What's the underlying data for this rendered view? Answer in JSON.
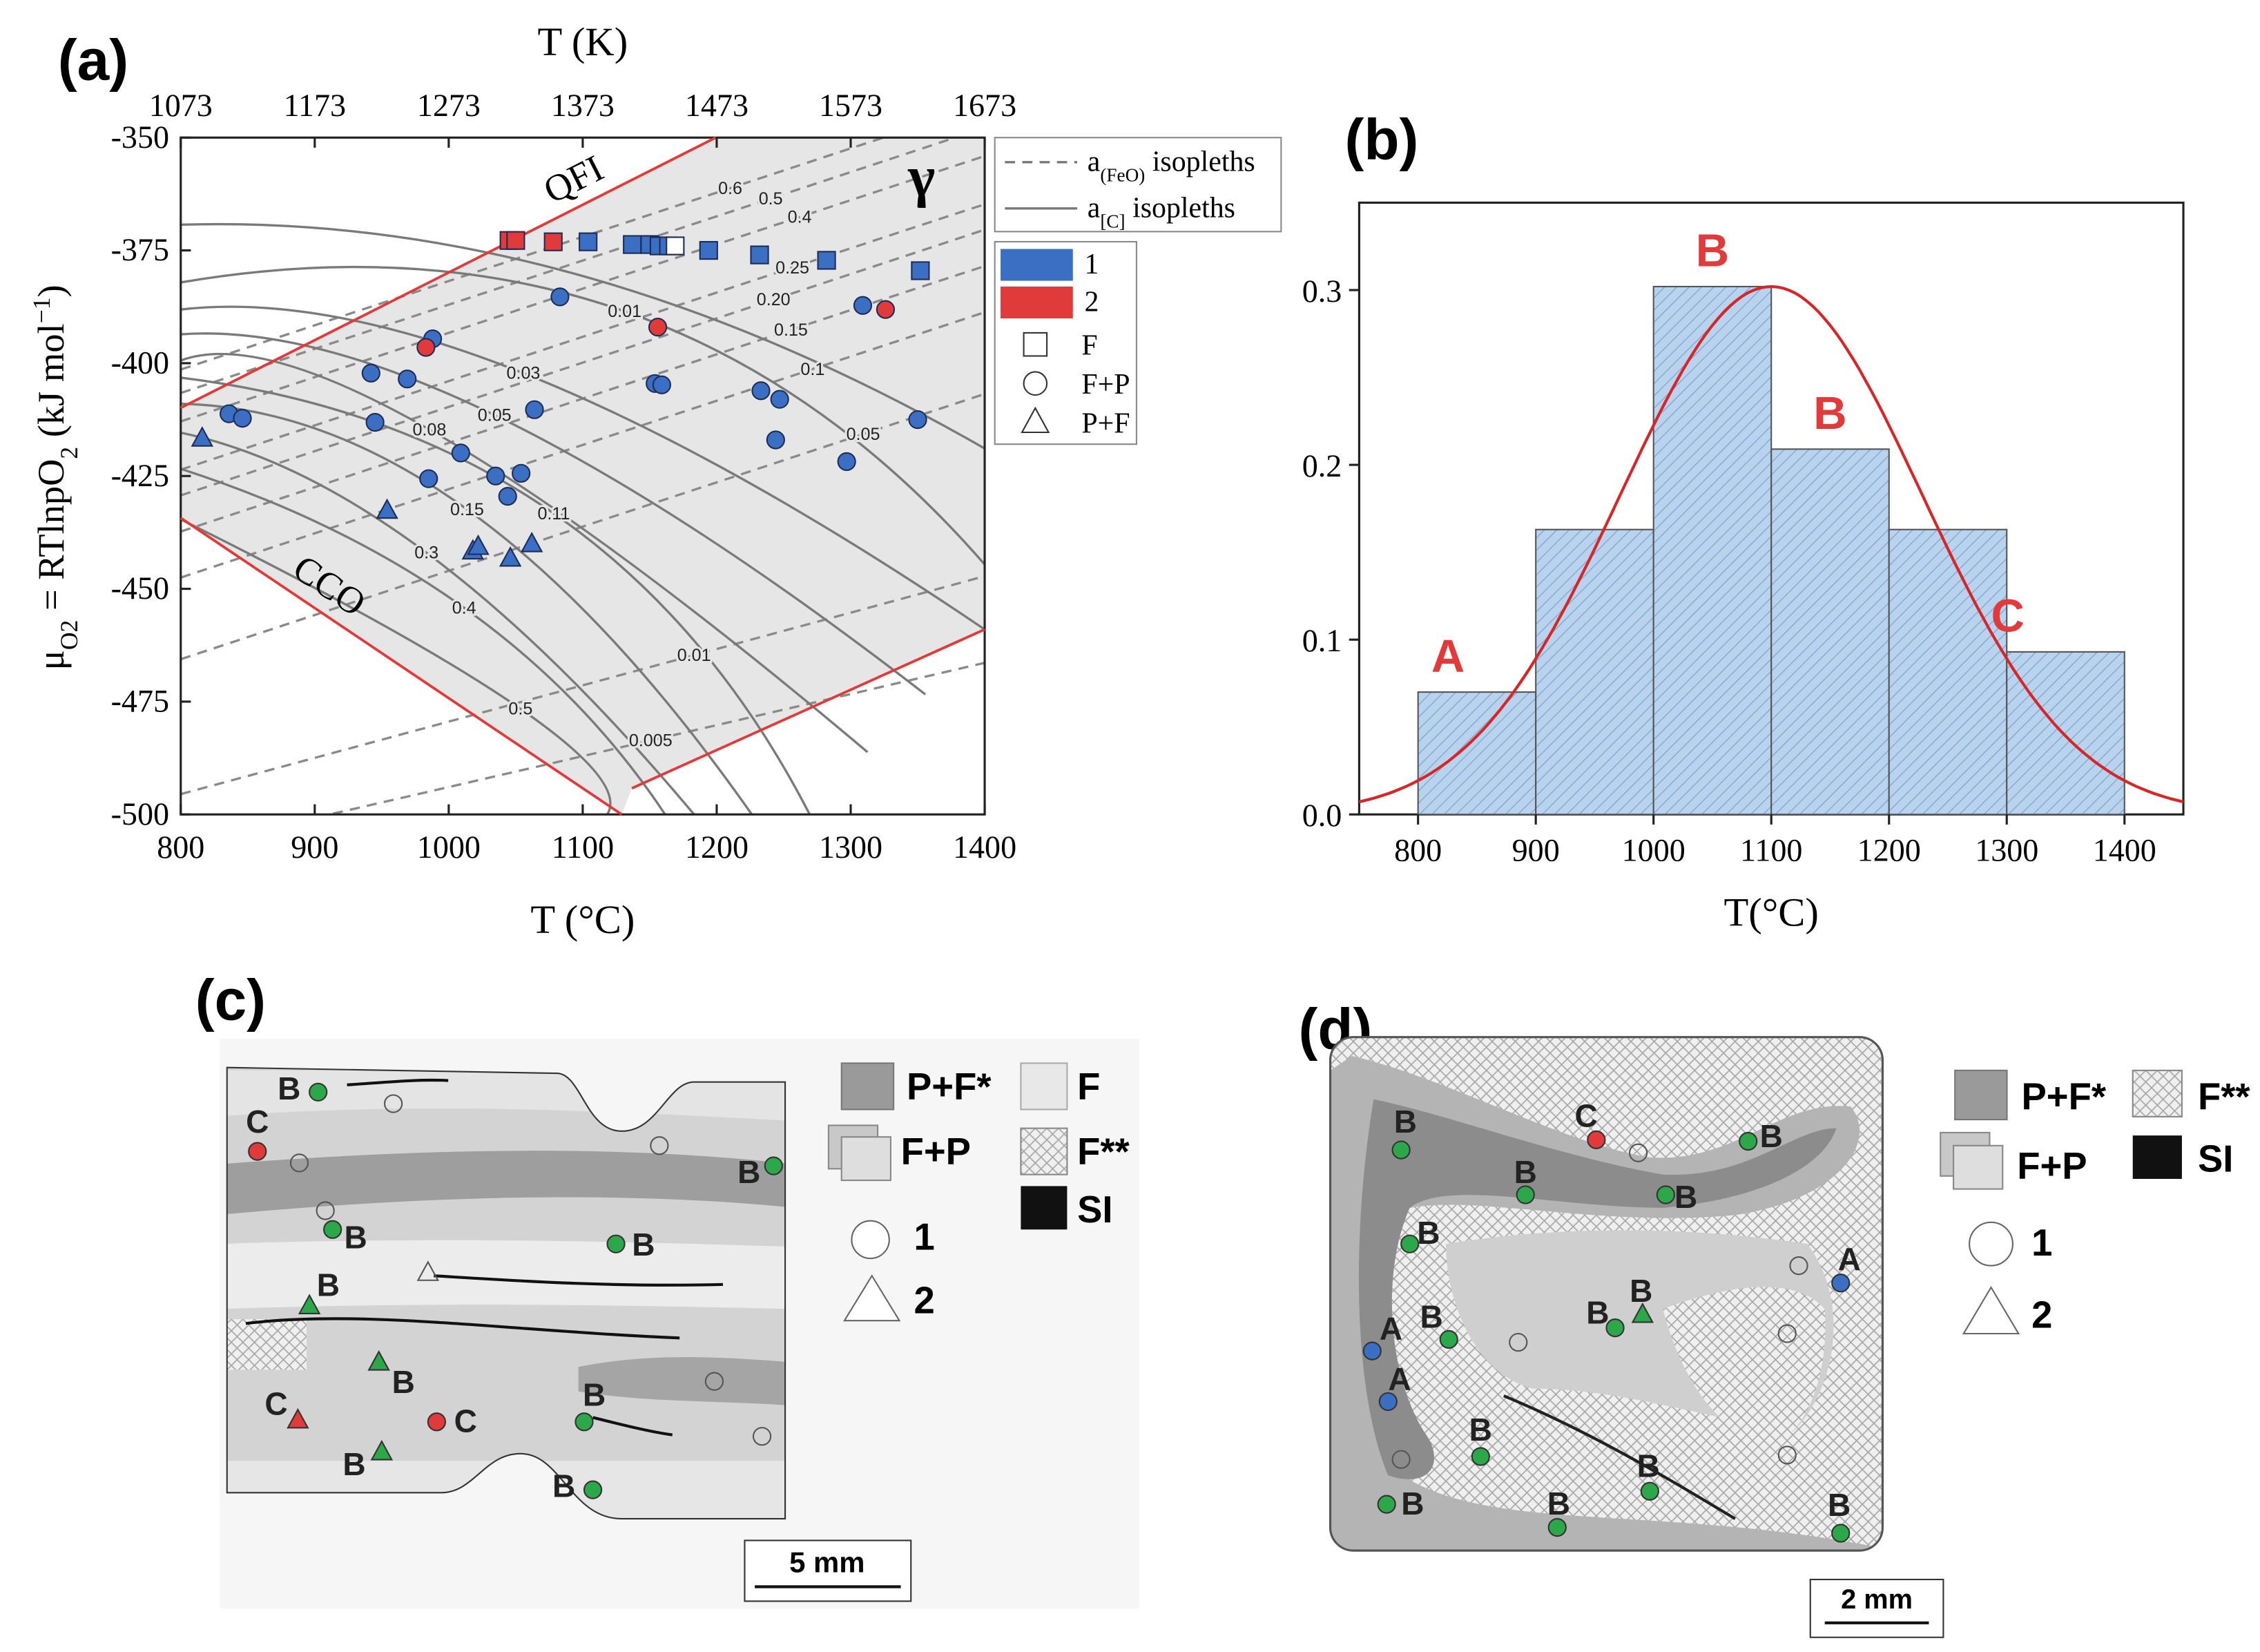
{
  "chart_data": [
    {
      "type": "scatter",
      "panel_label": "(a)",
      "x2label": "T (K)",
      "xlabel": "T (°C)",
      "ylabel": [
        "μ",
        "O2",
        " = RTlnpO",
        "2",
        " (kJ mol",
        "−1",
        ")"
      ],
      "xlim": [
        800,
        1400
      ],
      "xticks": [
        800,
        900,
        1000,
        1100,
        1200,
        1300,
        1400
      ],
      "x2lim": [
        1073,
        1673
      ],
      "x2ticks": [
        1073,
        1173,
        1273,
        1373,
        1473,
        1573,
        1673
      ],
      "ylim": [
        -500,
        -350
      ],
      "yticks": [
        -350,
        -375,
        -400,
        -425,
        -450,
        -475,
        -500
      ],
      "region_label": "γ",
      "boundaries": [
        {
          "label": "QFI",
          "color": "#e03a3a",
          "x": [
            800,
            1199.3
          ],
          "y": [
            -409.9,
            -350
          ]
        },
        {
          "label": "CCO",
          "color": "#e03a3a",
          "x": [
            800,
            1129.1
          ],
          "y": [
            -434.3,
            -500
          ]
        },
        {
          "color": "#e03a3a",
          "x": [
            1136.7,
            1400
          ],
          "y": [
            -494.2,
            -459
          ]
        }
      ],
      "isopleths": [
        {
          "style": "dashed",
          "label": "0.6",
          "x": [
            800,
            1210.1,
            1400
          ],
          "y": [
            -401.4,
            -361.2,
            -342.6
          ]
        },
        {
          "style": "dashed",
          "label": "0.5",
          "x": [
            800,
            1240.3,
            1400
          ],
          "y": [
            -406.6,
            -363.5,
            -347.8
          ]
        },
        {
          "style": "dashed",
          "label": "0.4",
          "x": [
            800,
            1261.9,
            1400
          ],
          "y": [
            -412.9,
            -367.6,
            -354.1
          ]
        },
        {
          "style": "dashed",
          "label": "0.25",
          "x": [
            800,
            1256.5,
            1400
          ],
          "y": [
            -423.6,
            -378.8,
            -364.8
          ]
        },
        {
          "style": "dashed",
          "label": "0.20",
          "x": [
            800,
            1242.4,
            1400
          ],
          "y": [
            -429.3,
            -385.9,
            -370.4
          ]
        },
        {
          "style": "dashed",
          "label": "0.15",
          "x": [
            800,
            1255.4,
            1400
          ],
          "y": [
            -437.3,
            -392.6,
            -378.5
          ]
        },
        {
          "style": "dashed",
          "label": "0.1",
          "x": [
            800,
            1271.6,
            1400
          ],
          "y": [
            -447.5,
            -401.3,
            -388.7
          ]
        },
        {
          "style": "dashed",
          "label": "0.05",
          "x": [
            800,
            1309.3,
            1400
          ],
          "y": [
            -465.6,
            -415.7,
            -406.8
          ]
        },
        {
          "style": "dashed",
          "label": "0.01",
          "x": [
            800,
            1183.1,
            1400
          ],
          "y": [
            -495.5,
            -464.7,
            -447.2
          ]
        },
        {
          "style": "dashed",
          "label": "0.005",
          "x": [
            800,
            1150.7,
            1400
          ],
          "y": [
            -507.6,
            -483.6,
            -466.4
          ]
        },
        {
          "style": "solid",
          "x": [
            800,
            1096.7,
            1400
          ],
          "y": [
            -369.3,
            -380.4,
            -418.9
          ]
        },
        {
          "style": "solid",
          "label": "0.01",
          "x": [
            800,
            1131.3,
            1400
          ],
          "y": [
            -382.1,
            -388.5,
            -444.6
          ]
        },
        {
          "style": "solid",
          "label": "0.03",
          "x": [
            800,
            1055.7,
            1400
          ],
          "y": [
            -388.1,
            -402.2,
            -459
          ]
        },
        {
          "style": "solid",
          "label": "0.05",
          "x": [
            800,
            1034.2,
            1355.7
          ],
          "y": [
            -393.6,
            -411.5,
            -473.4
          ]
        },
        {
          "style": "solid",
          "label": "0.08",
          "x": [
            800,
            985.6,
            1312.6
          ],
          "y": [
            -399.4,
            -414.7,
            -486.2
          ]
        },
        {
          "style": "solid",
          "label": "0.11",
          "x": [
            800,
            1078.4,
            1269.4
          ],
          "y": [
            -403.2,
            -433.3,
            -500
          ]
        },
        {
          "style": "solid",
          "label": "0.15",
          "x": [
            800,
            1013.7,
            1226.2
          ],
          "y": [
            -409,
            -432.4,
            -500
          ]
        },
        {
          "style": "solid",
          "label": "0.3",
          "x": [
            800,
            983.4,
            1183.1
          ],
          "y": [
            -415.4,
            -442,
            -500
          ]
        },
        {
          "style": "solid",
          "label": "0.4",
          "x": [
            800,
            1011.5,
            1161.5
          ],
          "y": [
            -423.4,
            -454.2,
            -500
          ]
        },
        {
          "style": "solid",
          "label": "0.5",
          "x": [
            800,
            1053.6,
            1118.3
          ],
          "y": [
            -434.6,
            -476.6,
            -500
          ]
        }
      ],
      "line_legend": [
        {
          "style": "dashed",
          "parts": [
            "a",
            "(FeO)",
            " isopleths"
          ]
        },
        {
          "style": "solid",
          "parts": [
            "a",
            "[C]",
            "  isopleths"
          ]
        }
      ],
      "color_legend": [
        {
          "label": "1",
          "color": "#3a6fc4"
        },
        {
          "label": "2",
          "color": "#e03a3a"
        }
      ],
      "marker_legend": [
        {
          "label": "F",
          "marker": "square"
        },
        {
          "label": "F+P",
          "marker": "circle"
        },
        {
          "label": "P+F",
          "marker": "triangle"
        }
      ],
      "series": [
        {
          "color": "#3a6fc4",
          "marker": "square",
          "x": [
            1104,
            1137,
            1150,
            1157,
            1164,
            1194,
            1232,
            1282,
            1352
          ],
          "y": [
            -373.1,
            -373.7,
            -373.7,
            -374,
            -374,
            -375,
            -376,
            -377.2,
            -379.5
          ]
        },
        {
          "color": "#e03a3a",
          "marker": "square",
          "x": [
            1045,
            1050,
            1078
          ],
          "y": [
            -372.8,
            -372.8,
            -373.1
          ]
        },
        {
          "color": "#ffffff",
          "marker": "square",
          "x": [
            1169
          ],
          "y": [
            -374
          ]
        },
        {
          "color": "#3a6fc4",
          "marker": "circle",
          "x": [
            1083,
            988,
            942,
            969,
            836,
            846,
            1064,
            945,
            1154,
            1159,
            1233,
            1247,
            1309,
            1350,
            1244,
            1297,
            1009,
            985,
            1035,
            1054,
            1044
          ],
          "y": [
            -385.3,
            -394.6,
            -402.2,
            -403.5,
            -411.2,
            -412.2,
            -410.3,
            -413.1,
            -404.5,
            -404.8,
            -406.1,
            -408,
            -387.2,
            -412.5,
            -417,
            -421.8,
            -419.9,
            -425.6,
            -425,
            -424.4,
            -429.5
          ]
        },
        {
          "color": "#e03a3a",
          "marker": "circle",
          "x": [
            983,
            1156,
            1326
          ],
          "y": [
            -396.5,
            -392,
            -388.1
          ]
        },
        {
          "color": "#3a6fc4",
          "marker": "triangle",
          "x": [
            816,
            954,
            1018,
            1022,
            1046,
            1062
          ],
          "y": [
            -416.7,
            -432.7,
            -441.7,
            -440.7,
            -443.3,
            -440.1
          ]
        }
      ]
    },
    {
      "type": "histogram",
      "panel_label": "(b)",
      "xlabel": "T(°C)",
      "bins": [
        800,
        900,
        1000,
        1100,
        1200,
        1300,
        1400
      ],
      "values": [
        0.07,
        0.163,
        0.302,
        0.209,
        0.163,
        0.093
      ],
      "bar_labels": [
        "A",
        null,
        "B",
        "B",
        null,
        "C"
      ],
      "label_color": "#e03a3a",
      "color": "#b9d3ee",
      "xlim": [
        750,
        1450
      ],
      "xticks": [
        800,
        900,
        1000,
        1100,
        1200,
        1300,
        1400
      ],
      "ylim": [
        0,
        0.35
      ],
      "yticks": [
        {
          "value": 0,
          "label": "0.0"
        },
        {
          "value": 0.1,
          "label": "0.1"
        },
        {
          "value": 0.2,
          "label": "0.2"
        },
        {
          "value": 0.3,
          "label": "0.3"
        }
      ],
      "fit": {
        "color": "#d62728",
        "mean": 1100,
        "sd": 128,
        "amplitude": 0.302
      }
    }
  ],
  "panel_c": {
    "panel_label": "(c)",
    "points": [
      "B",
      "C",
      "B",
      "B",
      "B",
      "B",
      "B",
      "C",
      "C",
      "B",
      "B",
      "B"
    ],
    "legend": [
      "P+F*",
      "F",
      "F+P",
      "F**",
      "SI",
      "1",
      "2"
    ],
    "scale_bar": "5 mm"
  },
  "panel_d": {
    "panel_label": "(d)",
    "points": [
      "B",
      "C",
      "B",
      "B",
      "B",
      "B",
      "A",
      "B",
      "A",
      "B",
      "B",
      "A",
      "B",
      "B",
      "B",
      "B",
      "B"
    ],
    "legend": [
      "P+F*",
      "F**",
      "F+P",
      "SI",
      "1",
      "2"
    ],
    "scale_bar": "2 mm"
  }
}
